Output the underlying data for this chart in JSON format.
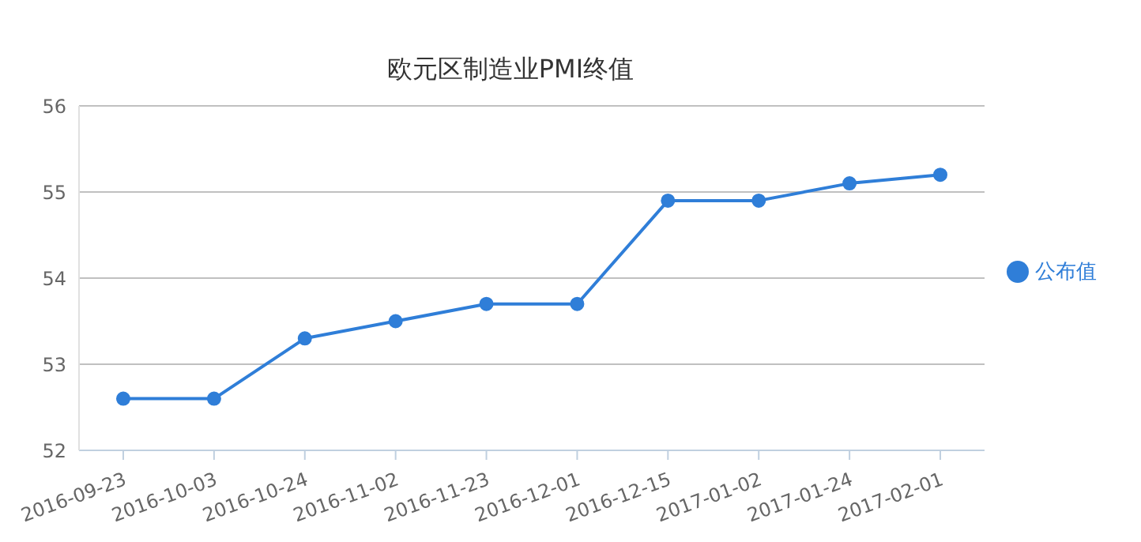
{
  "chart_data": {
    "type": "line",
    "title": "欧元区制造业PMI终值",
    "categories": [
      "2016-09-23",
      "2016-10-03",
      "2016-10-24",
      "2016-11-02",
      "2016-11-23",
      "2016-12-01",
      "2016-12-15",
      "2017-01-02",
      "2017-01-24",
      "2017-02-01"
    ],
    "series": [
      {
        "name": "公布值",
        "color": "#2f7ed8",
        "values": [
          52.6,
          52.6,
          53.3,
          53.5,
          53.7,
          53.7,
          54.9,
          54.9,
          55.1,
          55.2
        ]
      }
    ],
    "ylim": [
      52,
      56
    ],
    "yticks": [
      52,
      53,
      54,
      55,
      56
    ],
    "grid": "y",
    "legend": "right",
    "marker": "circle",
    "line_style": "solid"
  }
}
